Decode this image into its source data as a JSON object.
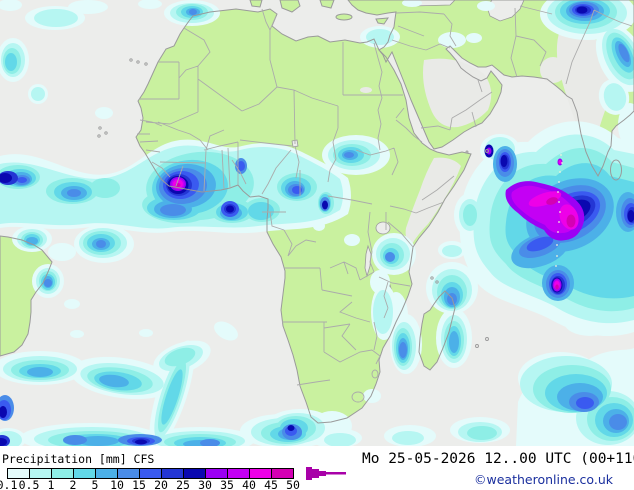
{
  "palette": {
    "ocean": "#ecedeb",
    "land": "#c9f19f",
    "coast": "#9a9a9a",
    "border": "#ababab",
    "dry": "#e9eae7",
    "text": "#000000",
    "copyright_color": "#1a2f9e",
    "island_dot": "#f2f2dc"
  },
  "legend": {
    "title": "Precipitation [mm] CFS",
    "colors": [
      "#e4fbfb",
      "#b6f6f2",
      "#8eeee6",
      "#62d8e8",
      "#4cb0e8",
      "#4a8ce8",
      "#3a5af0",
      "#2436d4",
      "#0a08b0",
      "#9c00f4",
      "#c400f4",
      "#ee00e8",
      "#d400b4"
    ],
    "tick_labels": [
      "0.1",
      "0.5",
      "1",
      "2",
      "5",
      "10",
      "15",
      "20",
      "25",
      "30",
      "35",
      "40",
      "45",
      "50"
    ],
    "arrow_color": "#a800a8"
  },
  "footer": {
    "datetime": "Mo 25-05-2026 12..00 UTC (00+110",
    "copyright": "©weatheronline.co.uk"
  }
}
